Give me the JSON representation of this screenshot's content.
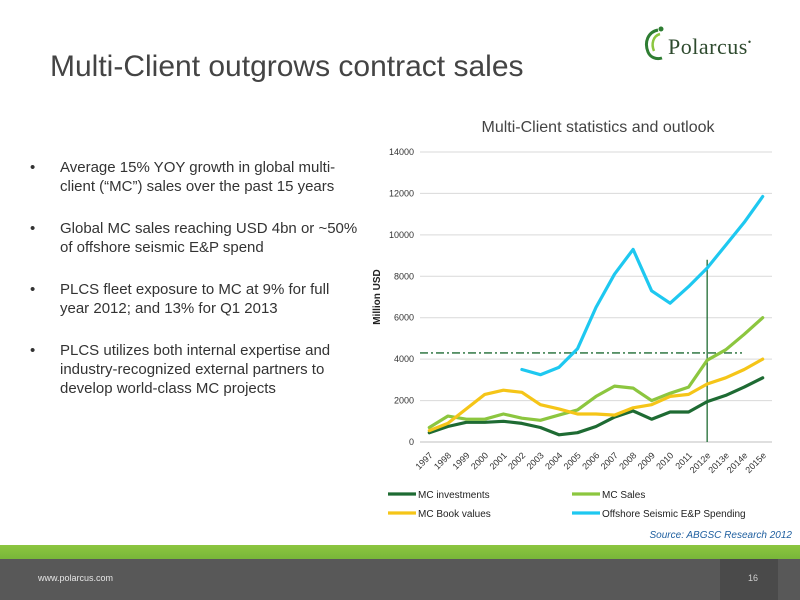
{
  "slide": {
    "title": "Multi-Client outgrows contract sales",
    "logo_text": "Polarcus",
    "logo_mark": "•",
    "bullet_marker": "•",
    "bullets": [
      "Average 15% YOY growth in global multi-client (“MC”) sales over the past 15 years",
      "Global MC sales reaching USD 4bn or ~50% of offshore seismic E&P spend",
      "PLCS fleet exposure to MC at 9% for full year 2012; and 13% for Q1 2013",
      "PLCS utilizes both internal expertise and industry-recognized external partners to develop world-class MC projects"
    ],
    "source": "Source: ABGSC Research 2012",
    "footer_url": "www.polarcus.com",
    "page_number": "16"
  },
  "chart_data": {
    "type": "line",
    "title": "Multi-Client statistics and outlook",
    "ylabel": "Million USD",
    "xlabel": "",
    "ylim": [
      0,
      14000
    ],
    "yticks": [
      0,
      2000,
      4000,
      6000,
      8000,
      10000,
      12000,
      14000
    ],
    "grid": true,
    "legend_position": "bottom",
    "categories": [
      "1997",
      "1998",
      "1999",
      "2000",
      "2001",
      "2002",
      "2003",
      "2004",
      "2005",
      "2006",
      "2007",
      "2008",
      "2009",
      "2010",
      "2011",
      "2012e",
      "2013e",
      "2014e",
      "2015e"
    ],
    "series": [
      {
        "name": "MC investments",
        "color": "#1e6b33",
        "values": [
          450,
          750,
          950,
          950,
          1000,
          900,
          700,
          350,
          450,
          750,
          1200,
          1500,
          1100,
          1450,
          1450,
          1950,
          2250,
          2650,
          3100
        ]
      },
      {
        "name": "MC Sales",
        "color": "#8cc63f",
        "values": [
          700,
          1250,
          1100,
          1100,
          1350,
          1150,
          1050,
          1300,
          1550,
          2200,
          2700,
          2600,
          2000,
          2350,
          2650,
          3950,
          4450,
          5200,
          6000
        ]
      },
      {
        "name": "MC Book values",
        "color": "#f5c518",
        "values": [
          550,
          900,
          1600,
          2300,
          2500,
          2400,
          1800,
          1600,
          1350,
          1350,
          1300,
          1650,
          1800,
          2200,
          2300,
          2800,
          3100,
          3500,
          4000
        ]
      },
      {
        "name": "Offshore Seismic E&P Spending",
        "color": "#1ec8f0",
        "values": [
          null,
          null,
          null,
          null,
          null,
          3500,
          3250,
          3600,
          4500,
          6500,
          8100,
          9300,
          7300,
          6700,
          7500,
          8400,
          9500,
          10600,
          11850
        ]
      }
    ],
    "annotations": [
      {
        "type": "hline",
        "y": 4300,
        "style": "dash-dot",
        "color": "#1e6b33"
      },
      {
        "type": "vline",
        "x": "2012e",
        "y_top": 8800,
        "color": "#1e6b33"
      }
    ]
  }
}
